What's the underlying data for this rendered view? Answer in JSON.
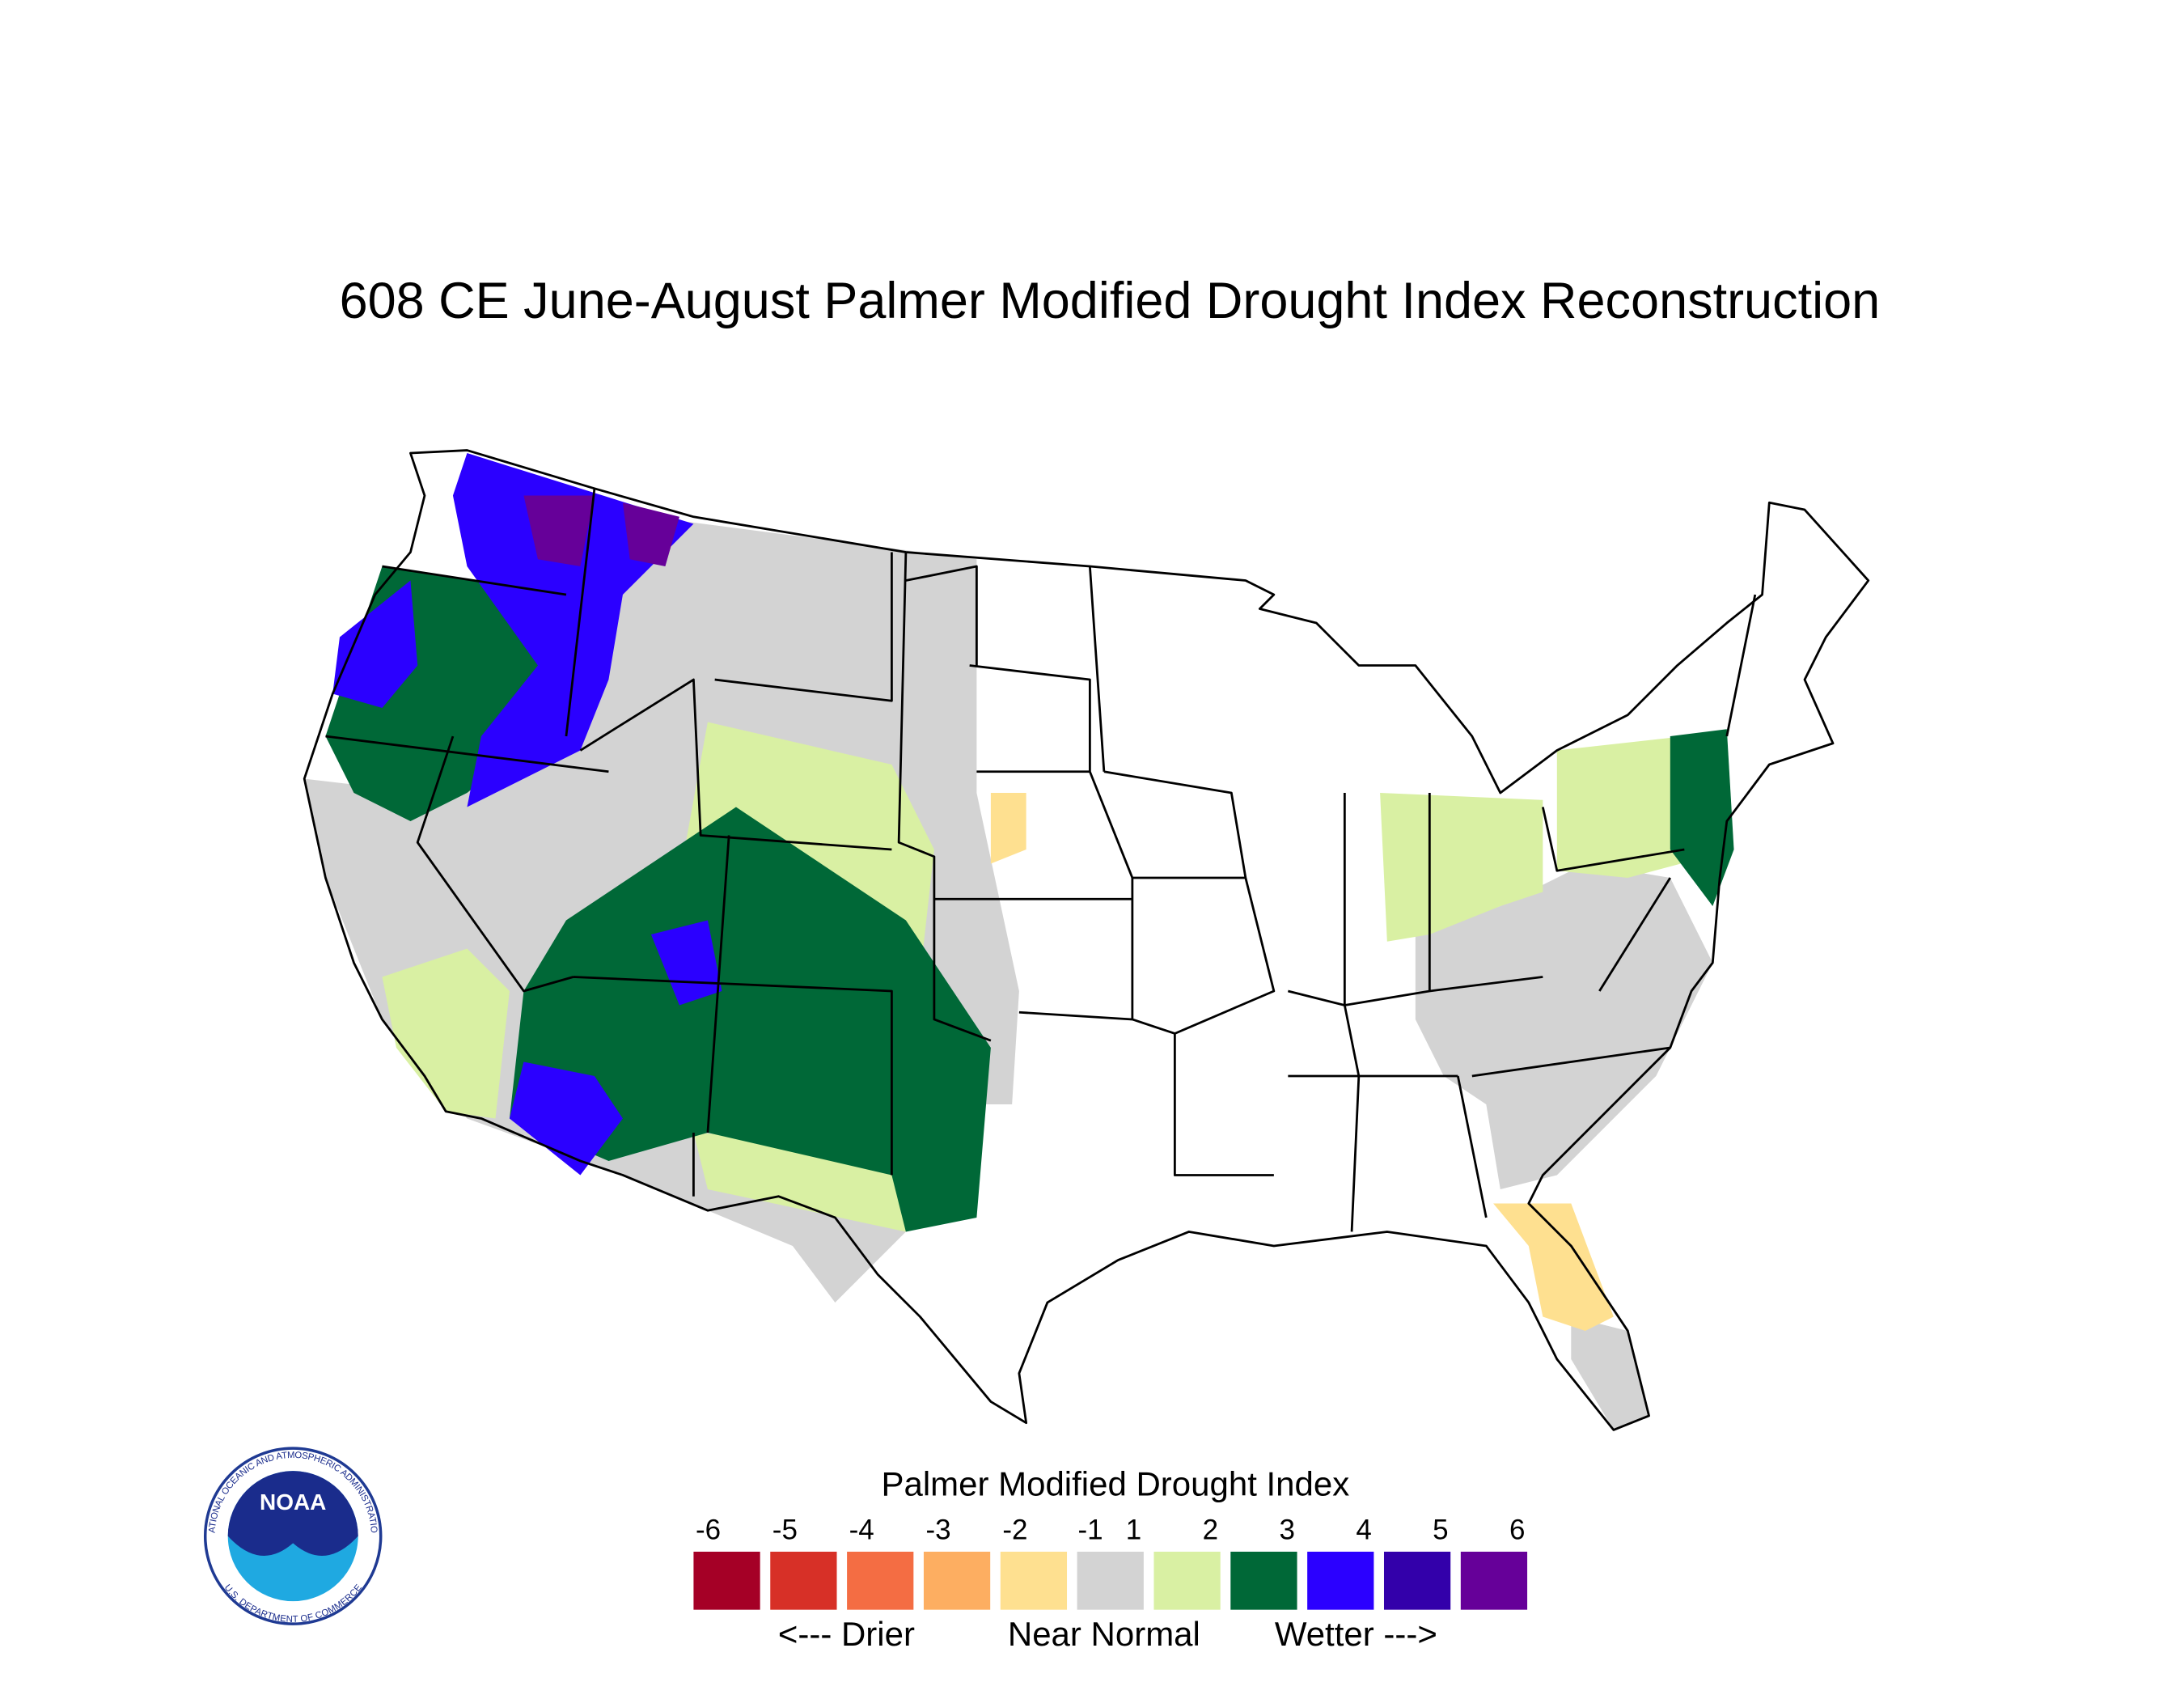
{
  "title": "608 CE  June-August  Palmer Modified Drought Index Reconstruction",
  "legend": {
    "title": "Palmer Modified Drought Index",
    "ticks": [
      -6,
      -5,
      -4,
      -3,
      -2,
      -1,
      1,
      2,
      3,
      4,
      5,
      6
    ],
    "colors": [
      "#a50026",
      "#d73027",
      "#f46d43",
      "#fdae61",
      "#fee090",
      "#d3d3d3",
      "#d9f0a3",
      "#006837",
      "#2b00ff",
      "#3300aa",
      "#660099"
    ],
    "labels": [
      "<--- Drier",
      "Near Normal",
      "Wetter --->"
    ]
  },
  "logo": {
    "name": "NOAA",
    "top_text": "NATIONAL OCEANIC AND ATMOSPHERIC ADMINISTRATION",
    "bottom_text": "U.S. DEPARTMENT OF COMMERCE"
  }
}
